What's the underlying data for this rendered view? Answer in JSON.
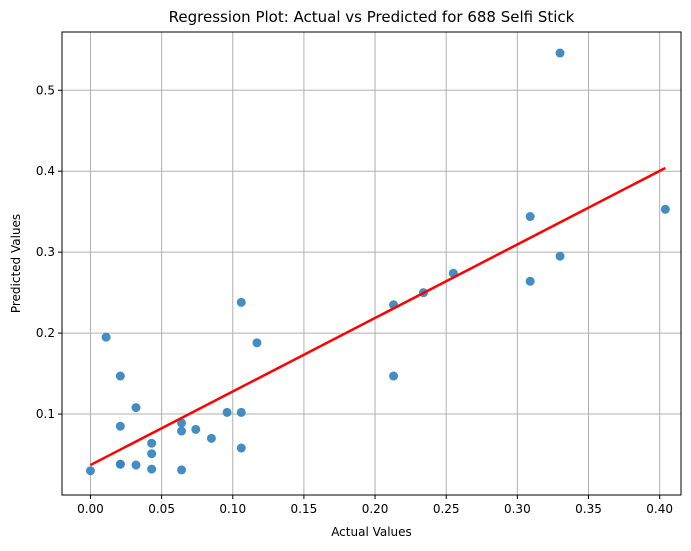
{
  "chart_data": {
    "type": "scatter",
    "title": "Regression Plot: Actual vs Predicted for 688 Selfi Stick",
    "xlabel": "Actual Values",
    "ylabel": "Predicted Values",
    "xlim": [
      -0.02,
      0.415
    ],
    "ylim": [
      0.0,
      0.572
    ],
    "x_ticks": [
      0.0,
      0.05,
      0.1,
      0.15,
      0.2,
      0.25,
      0.3,
      0.35,
      0.4
    ],
    "x_tick_labels": [
      "0.00",
      "0.05",
      "0.10",
      "0.15",
      "0.20",
      "0.25",
      "0.30",
      "0.35",
      "0.40"
    ],
    "y_ticks": [
      0.1,
      0.2,
      0.3,
      0.4,
      0.5
    ],
    "y_tick_labels": [
      "0.1",
      "0.2",
      "0.3",
      "0.4",
      "0.5"
    ],
    "grid": true,
    "legend": "none",
    "series": [
      {
        "kind": "scatter",
        "color": "#3a87c0",
        "points": [
          [
            0.0,
            0.03
          ],
          [
            0.011,
            0.195
          ],
          [
            0.021,
            0.147
          ],
          [
            0.021,
            0.085
          ],
          [
            0.021,
            0.038
          ],
          [
            0.021,
            0.038
          ],
          [
            0.032,
            0.108
          ],
          [
            0.032,
            0.037
          ],
          [
            0.043,
            0.064
          ],
          [
            0.043,
            0.051
          ],
          [
            0.043,
            0.032
          ],
          [
            0.064,
            0.089
          ],
          [
            0.064,
            0.079
          ],
          [
            0.064,
            0.031
          ],
          [
            0.074,
            0.081
          ],
          [
            0.085,
            0.07
          ],
          [
            0.096,
            0.102
          ],
          [
            0.106,
            0.238
          ],
          [
            0.106,
            0.102
          ],
          [
            0.106,
            0.058
          ],
          [
            0.117,
            0.188
          ],
          [
            0.213,
            0.235
          ],
          [
            0.213,
            0.147
          ],
          [
            0.234,
            0.25
          ],
          [
            0.255,
            0.274
          ],
          [
            0.309,
            0.344
          ],
          [
            0.309,
            0.264
          ],
          [
            0.33,
            0.546
          ],
          [
            0.33,
            0.295
          ],
          [
            0.404,
            0.353
          ]
        ]
      },
      {
        "kind": "line",
        "color": "#ff0000",
        "points": [
          [
            0.0,
            0.037
          ],
          [
            0.404,
            0.404
          ]
        ]
      }
    ]
  }
}
